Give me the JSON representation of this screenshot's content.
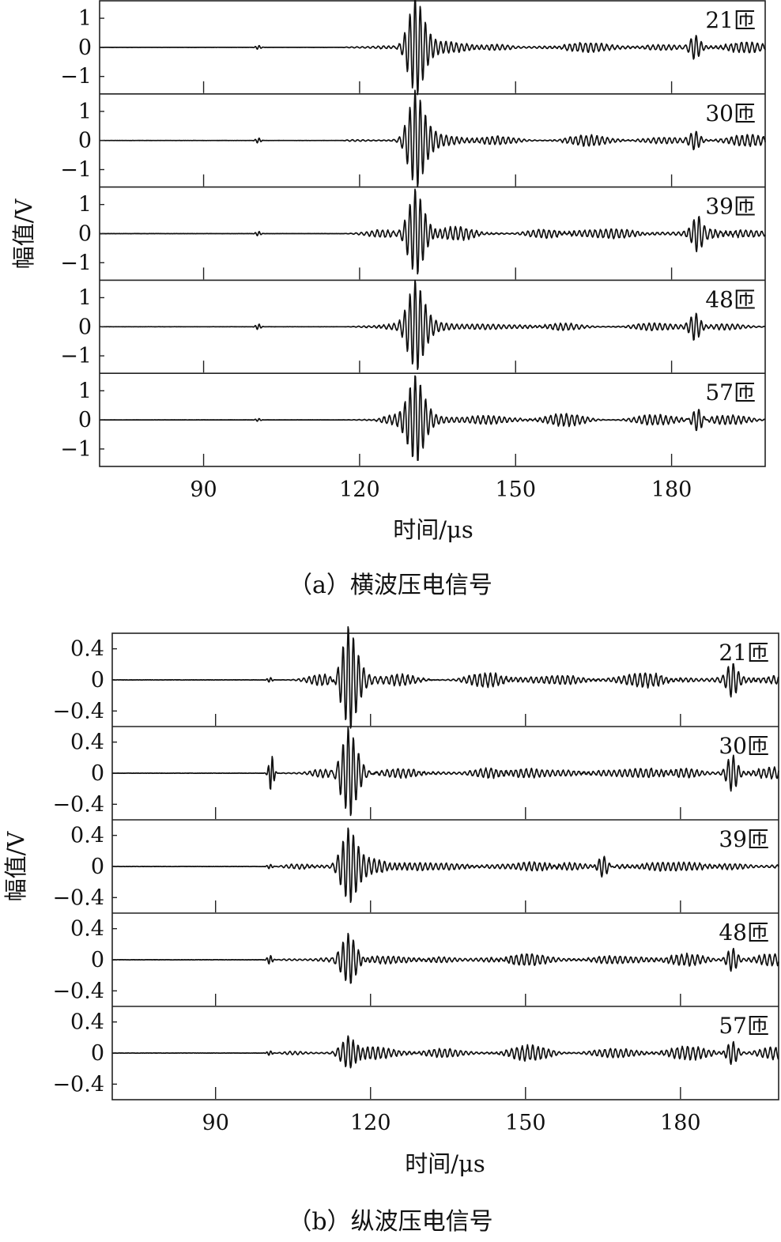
{
  "chart_data": [
    {
      "type": "line",
      "caption": "（a）横波压电信号",
      "xlabel": "时间/μs",
      "ylabel": "幅值/V",
      "xlim": [
        70,
        198
      ],
      "ylim": [
        -1.6,
        1.6
      ],
      "x_ticks": [
        90,
        120,
        150,
        180
      ],
      "x_tick_labels": [
        "90",
        "120",
        "150",
        "180"
      ],
      "y_ticks": [
        1,
        0,
        -1
      ],
      "y_tick_labels": [
        "1",
        "0",
        "−1"
      ],
      "series": [
        {
          "name": "21匝",
          "main_t": 130.5,
          "main_amp": 1.45,
          "small_t": 100.5,
          "small_amp": 0.07,
          "late_t": 184.5,
          "late_amp": 0.4,
          "noise": 0.13,
          "seed": 11
        },
        {
          "name": "30匝",
          "main_t": 130.5,
          "main_amp": 1.35,
          "small_t": 100.5,
          "small_amp": 0.09,
          "late_t": 184.5,
          "late_amp": 0.3,
          "noise": 0.12,
          "seed": 23
        },
        {
          "name": "39匝",
          "main_t": 130.5,
          "main_amp": 1.3,
          "small_t": 100.5,
          "small_amp": 0.08,
          "late_t": 185.0,
          "late_amp": 0.55,
          "noise": 0.17,
          "seed": 37
        },
        {
          "name": "48匝",
          "main_t": 130.5,
          "main_amp": 1.25,
          "small_t": 100.5,
          "small_amp": 0.1,
          "late_t": 184.5,
          "late_amp": 0.45,
          "noise": 0.1,
          "seed": 41
        },
        {
          "name": "57匝",
          "main_t": 130.5,
          "main_amp": 1.2,
          "small_t": 100.5,
          "small_amp": 0.05,
          "late_t": 185.0,
          "late_amp": 0.45,
          "noise": 0.14,
          "seed": 53
        }
      ]
    },
    {
      "type": "line",
      "caption": "（b）纵波压电信号",
      "xlabel": "时间/μs",
      "ylabel": "幅值/V",
      "xlim": [
        70,
        199
      ],
      "ylim": [
        -0.6,
        0.6
      ],
      "x_ticks": [
        90,
        120,
        150,
        180
      ],
      "x_tick_labels": [
        "90",
        "120",
        "150",
        "180"
      ],
      "y_ticks": [
        0.4,
        0,
        -0.4
      ],
      "y_tick_labels": [
        "0.4",
        "0",
        "−0.4"
      ],
      "series": [
        {
          "name": "21匝",
          "main_t": 115.5,
          "main_amp": 0.58,
          "small_t": 100.5,
          "small_amp": 0.03,
          "late_t": 190.0,
          "late_amp": 0.18,
          "noise": 0.07,
          "seed": 7
        },
        {
          "name": "30匝",
          "main_t": 115.5,
          "main_amp": 0.5,
          "small_t": 100.8,
          "small_amp": 0.24,
          "late_t": 190.0,
          "late_amp": 0.22,
          "noise": 0.07,
          "seed": 19
        },
        {
          "name": "39匝",
          "main_t": 115.5,
          "main_amp": 0.4,
          "small_t": 100.5,
          "small_amp": 0.03,
          "late_t": 165.0,
          "late_amp": 0.15,
          "noise": 0.06,
          "seed": 29
        },
        {
          "name": "48匝",
          "main_t": 115.5,
          "main_amp": 0.3,
          "small_t": 100.5,
          "small_amp": 0.06,
          "late_t": 190.0,
          "late_amp": 0.15,
          "noise": 0.06,
          "seed": 31
        },
        {
          "name": "57匝",
          "main_t": 115.5,
          "main_amp": 0.2,
          "small_t": 100.5,
          "small_amp": 0.03,
          "late_t": 190.0,
          "late_amp": 0.15,
          "noise": 0.06,
          "seed": 43
        }
      ]
    }
  ]
}
